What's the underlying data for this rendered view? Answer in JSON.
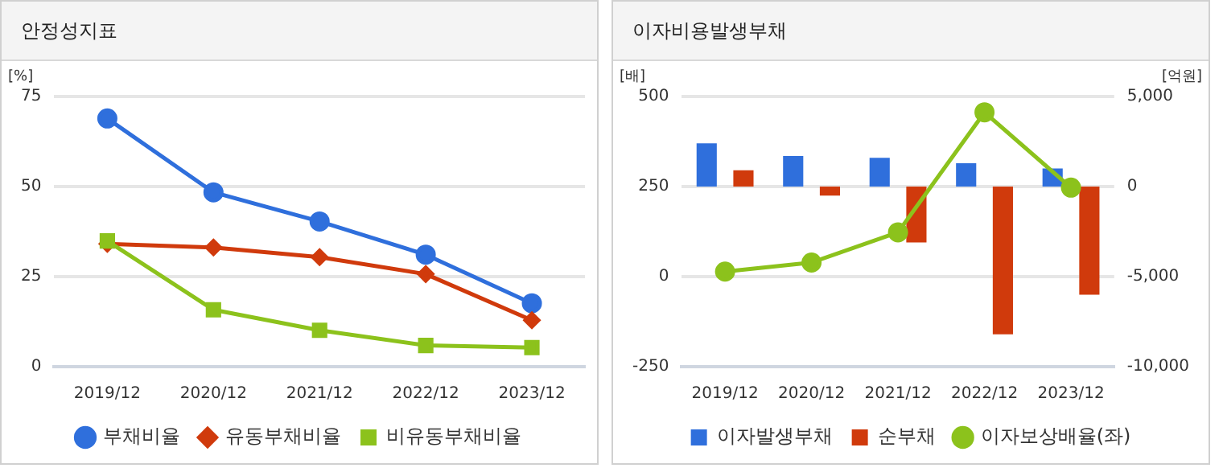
{
  "chart_data": [
    {
      "type": "line",
      "title": "안정성지표",
      "ylabel": "[%]",
      "categories": [
        "2019/12",
        "2020/12",
        "2021/12",
        "2022/12",
        "2023/12"
      ],
      "ylim": [
        0,
        75
      ],
      "yticks": [
        0,
        25,
        50,
        75
      ],
      "grid": "y",
      "legend": "bottom",
      "series": [
        {
          "name": "부채비율",
          "color": "#2f6fdc",
          "marker": "circle",
          "values": [
            68.9,
            48.4,
            40.3,
            31.1,
            17.6
          ]
        },
        {
          "name": "유동부채비율",
          "color": "#d03a0c",
          "marker": "diamond",
          "values": [
            34.1,
            33.1,
            30.4,
            25.7,
            12.9
          ]
        },
        {
          "name": "비유동부채비율",
          "color": "#8cc21c",
          "marker": "square",
          "values": [
            34.9,
            15.8,
            10.1,
            5.9,
            5.3
          ]
        }
      ]
    },
    {
      "type": "bar",
      "title": "이자비용발생부채",
      "ylabel": "[배]",
      "y2label": "[억원]",
      "categories": [
        "2019/12",
        "2020/12",
        "2021/12",
        "2022/12",
        "2023/12"
      ],
      "ylim": [
        -250,
        500
      ],
      "yticks": [
        -250,
        0,
        250,
        500
      ],
      "y2lim": [
        -10000,
        5000
      ],
      "y2ticks": [
        {
          "value": -10000,
          "label": "-10,000"
        },
        {
          "value": -5000,
          "label": "-5,000"
        },
        0,
        {
          "value": 5000,
          "label": "5,000"
        }
      ],
      "grid": "y",
      "legend": "bottom",
      "series": [
        {
          "name": "이자발생부채",
          "color": "#2f6fdc",
          "axis": "y2",
          "values": [
            2400,
            1700,
            1600,
            1300,
            1000
          ]
        },
        {
          "name": "순부채",
          "color": "#d03a0c",
          "axis": "y2",
          "values": [
            900,
            -500,
            -3100,
            -8200,
            -6000
          ]
        },
        {
          "name": "이자보상배율(좌)",
          "type": "line",
          "color": "#8cc21c",
          "marker": "circle",
          "axis": "y",
          "values": [
            14,
            39,
            123,
            456,
            247
          ]
        }
      ]
    }
  ]
}
